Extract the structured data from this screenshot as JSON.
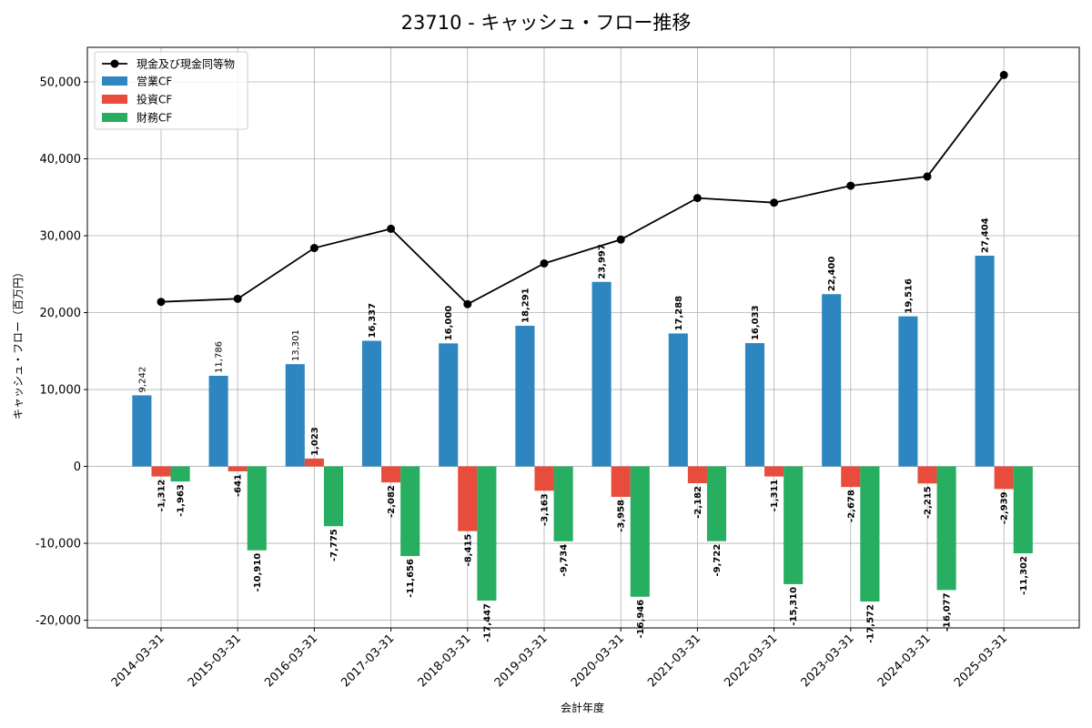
{
  "chart_data": {
    "type": "bar",
    "title": "23710 - キャッシュ・フロー推移",
    "xlabel": "会計年度",
    "ylabel": "キャッシュ・フロー（百万円）",
    "ylim": [
      -21000,
      54500
    ],
    "yticks": [
      -20000,
      -10000,
      0,
      10000,
      20000,
      30000,
      40000,
      50000
    ],
    "ytick_labels": [
      "-20,000",
      "-10,000",
      "0",
      "10,000",
      "20,000",
      "30,000",
      "40,000",
      "50,000"
    ],
    "grid": true,
    "legend_position": "top-left",
    "categories": [
      "2014-03-31",
      "2015-03-31",
      "2016-03-31",
      "2017-03-31",
      "2018-03-31",
      "2019-03-31",
      "2020-03-31",
      "2021-03-31",
      "2022-03-31",
      "2023-03-31",
      "2024-03-31",
      "2025-03-31"
    ],
    "line_series": {
      "name": "現金及び現金同等物",
      "color": "#000000",
      "values": [
        21400,
        21800,
        28400,
        30900,
        21100,
        26400,
        29500,
        34900,
        34300,
        36500,
        37700,
        50900
      ]
    },
    "series": [
      {
        "name": "営業CF",
        "color": "#2e86c1",
        "values": [
          9242,
          11786,
          13301,
          16337,
          16000,
          18291,
          23997,
          17288,
          16033,
          22400,
          19516,
          27404
        ],
        "labels": [
          "9,242",
          "11,786",
          "13,301",
          "16,337",
          "16,000",
          "18,291",
          "23,997",
          "17,288",
          "16,033",
          "22,400",
          "19,516",
          "27,404"
        ]
      },
      {
        "name": "投資CF",
        "color": "#e74c3c",
        "values": [
          -1312,
          -641,
          1023,
          -2082,
          -8415,
          -3163,
          -3958,
          -2182,
          -1311,
          -2678,
          -2215,
          -2939
        ],
        "labels": [
          "-1,312",
          "-641",
          "1,023",
          "-2,082",
          "-8,415",
          "-3,163",
          "-3,958",
          "-2,182",
          "-1,311",
          "-2,678",
          "-2,215",
          "-2,939"
        ]
      },
      {
        "name": "財務CF",
        "color": "#27ae60",
        "values": [
          -1963,
          -10910,
          -7775,
          -11656,
          -17447,
          -9734,
          -16946,
          -9722,
          -15310,
          -17572,
          -16077,
          -11302
        ],
        "labels": [
          "-1,963",
          "-10,910",
          "-7,775",
          "-11,656",
          "-17,447",
          "-9,734",
          "-16,946",
          "-9,722",
          "-15,310",
          "-17,572",
          "-16,077",
          "-11,302"
        ]
      }
    ]
  }
}
